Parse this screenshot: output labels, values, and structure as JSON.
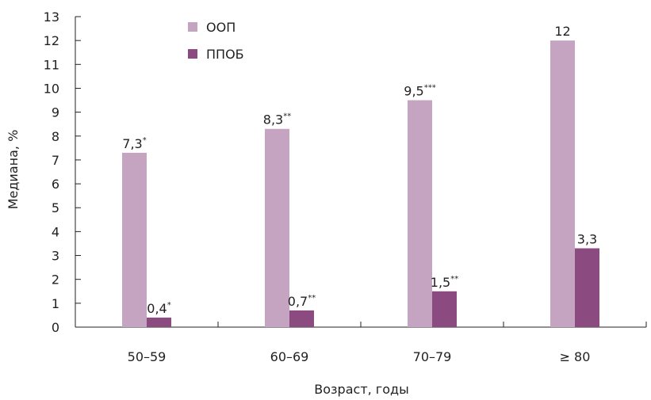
{
  "chart_data": {
    "type": "bar",
    "categories": [
      "50–59",
      "60–69",
      "70–79",
      "≥ 80"
    ],
    "series": [
      {
        "name": "ООП",
        "color": "#c5a4c2",
        "values": [
          7.3,
          8.3,
          9.5,
          12
        ],
        "labels": [
          "7,3",
          "8,3",
          "9,5",
          "12"
        ],
        "marks": [
          "*",
          "**",
          "***",
          ""
        ]
      },
      {
        "name": "ППОБ",
        "color": "#8b4a80",
        "values": [
          0.4,
          0.7,
          1.5,
          3.3
        ],
        "labels": [
          "0,4",
          "0,7",
          "1,5",
          "3,3"
        ],
        "marks": [
          "*",
          "**",
          "**",
          ""
        ]
      }
    ],
    "xlabel": "Возраст, годы",
    "ylabel": "Медиана, %",
    "ylim": [
      0,
      13
    ],
    "yticks": [
      0,
      1,
      2,
      3,
      4,
      5,
      6,
      7,
      8,
      9,
      10,
      11,
      12,
      13
    ],
    "grid": false,
    "legend": "top-left"
  }
}
